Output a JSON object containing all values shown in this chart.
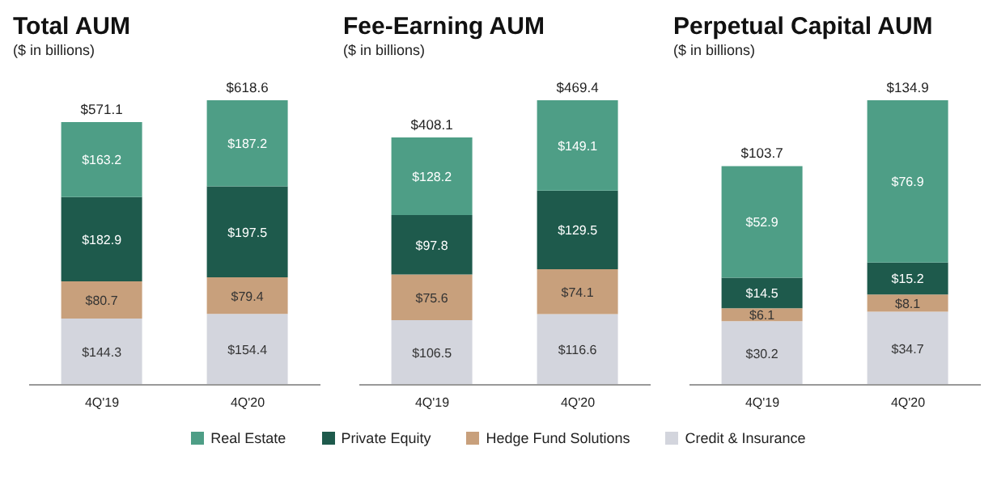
{
  "chart_data": [
    {
      "type": "bar",
      "title": "Total AUM",
      "subtitle": "($ in billions)",
      "categories": [
        "4Q'19",
        "4Q'20"
      ],
      "stacked": true,
      "legend": "bottom",
      "series": [
        {
          "name": "Credit & Insurance",
          "color": "#d3d5dd",
          "values": [
            144.3,
            154.4
          ],
          "value_labels": [
            "$144.3",
            "$154.4"
          ]
        },
        {
          "name": "Hedge Fund Solutions",
          "color": "#c8a07c",
          "values": [
            80.7,
            79.4
          ],
          "value_labels": [
            "$80.7",
            "$79.4"
          ]
        },
        {
          "name": "Private Equity",
          "color": "#1e5a4c",
          "values": [
            182.9,
            197.5
          ],
          "value_labels": [
            "$182.9",
            "$197.5"
          ]
        },
        {
          "name": "Real Estate",
          "color": "#4e9e86",
          "values": [
            163.2,
            187.2
          ],
          "value_labels": [
            "$163.2",
            "$187.2"
          ]
        }
      ],
      "totals": [
        "$571.1",
        "$618.6"
      ]
    },
    {
      "type": "bar",
      "title": "Fee-Earning AUM",
      "subtitle": "($ in billions)",
      "categories": [
        "4Q'19",
        "4Q'20"
      ],
      "stacked": true,
      "series": [
        {
          "color": "#d3d5dd",
          "values": [
            106.5,
            116.6
          ],
          "value_labels": [
            "$106.5",
            "$116.6"
          ]
        },
        {
          "color": "#c8a07c",
          "values": [
            75.6,
            74.1
          ],
          "value_labels": [
            "$75.6",
            "$74.1"
          ]
        },
        {
          "color": "#1e5a4c",
          "values": [
            97.8,
            129.5
          ],
          "value_labels": [
            "$97.8",
            "$129.5"
          ]
        },
        {
          "color": "#4e9e86",
          "values": [
            128.2,
            149.1
          ],
          "value_labels": [
            "$128.2",
            "$149.1"
          ]
        }
      ],
      "totals": [
        "$408.1",
        "$469.4"
      ]
    },
    {
      "type": "bar",
      "title": "Perpetual Capital AUM",
      "subtitle": "($ in billions)",
      "categories": [
        "4Q'19",
        "4Q'20"
      ],
      "stacked": true,
      "series": [
        {
          "color": "#d3d5dd",
          "values": [
            30.2,
            34.7
          ],
          "value_labels": [
            "$30.2",
            "$34.7"
          ]
        },
        {
          "color": "#c8a07c",
          "values": [
            6.1,
            8.1
          ],
          "value_labels": [
            "$6.1",
            "$8.1"
          ]
        },
        {
          "color": "#1e5a4c",
          "values": [
            14.5,
            15.2
          ],
          "value_labels": [
            "$14.5",
            "$15.2"
          ]
        },
        {
          "color": "#4e9e86",
          "values": [
            52.9,
            76.9
          ],
          "value_labels": [
            "$52.9",
            "$76.9"
          ]
        }
      ],
      "totals": [
        "$103.7",
        "$134.9"
      ]
    }
  ]
}
